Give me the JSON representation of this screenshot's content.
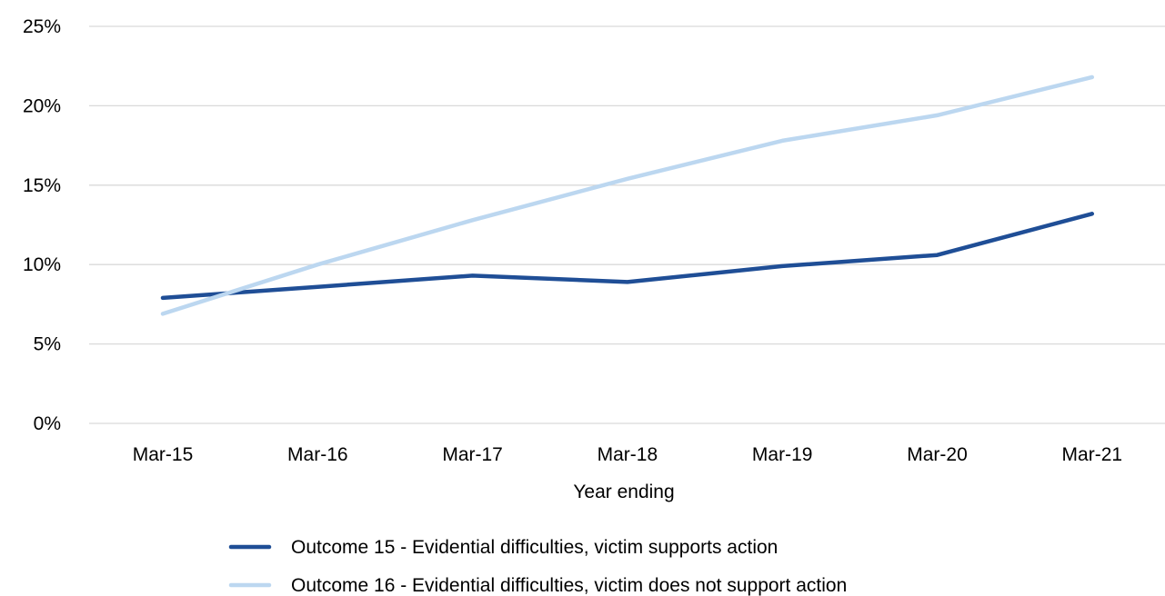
{
  "chart_data": {
    "type": "line",
    "title": "",
    "xlabel": "Year ending",
    "ylabel": "",
    "categories": [
      "Mar-15",
      "Mar-16",
      "Mar-17",
      "Mar-18",
      "Mar-19",
      "Mar-20",
      "Mar-21"
    ],
    "ylim": [
      0,
      25
    ],
    "yticks": [
      0,
      5,
      10,
      15,
      20,
      25
    ],
    "ytick_labels": [
      "0%",
      "5%",
      "10%",
      "15%",
      "20%",
      "25%"
    ],
    "grid": true,
    "legend_position": "bottom",
    "series": [
      {
        "name": "Outcome 15 - Evidential difficulties, victim supports action",
        "values": [
          7.9,
          8.6,
          9.3,
          8.9,
          9.9,
          10.6,
          13.2
        ],
        "color": "#1f4e96"
      },
      {
        "name": "Outcome 16 - Evidential difficulties, victim does not support action",
        "values": [
          6.9,
          10.0,
          12.8,
          15.4,
          17.8,
          19.4,
          21.8
        ],
        "color": "#bcd7f0"
      }
    ]
  }
}
